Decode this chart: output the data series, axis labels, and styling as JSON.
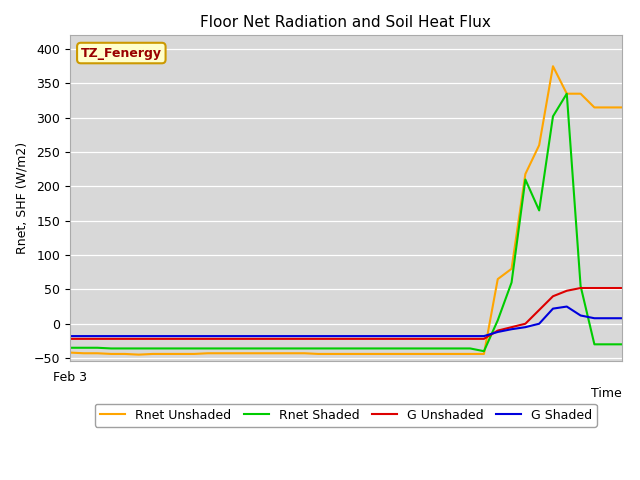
{
  "title": "Floor Net Radiation and Soil Heat Flux",
  "xlabel": "Time",
  "ylabel": "Rnet, SHF (W/m2)",
  "ylim": [
    -55,
    420
  ],
  "yticks": [
    -50,
    0,
    50,
    100,
    150,
    200,
    250,
    300,
    350,
    400
  ],
  "xstart_label": "Feb 3",
  "annotation_text": "TZ_Fenergy",
  "annotation_color": "#990000",
  "annotation_bg": "#ffffcc",
  "annotation_border": "#cc9900",
  "fig_bg": "#ffffff",
  "plot_bg": "#d8d8d8",
  "grid_color": "#ffffff",
  "colors": {
    "rnet_unshaded": "#ffa500",
    "rnet_shaded": "#00cc00",
    "g_unshaded": "#dd0000",
    "g_shaded": "#0000dd"
  },
  "x": [
    0,
    1,
    2,
    3,
    4,
    5,
    6,
    7,
    8,
    9,
    10,
    11,
    12,
    13,
    14,
    15,
    16,
    17,
    18,
    19,
    20,
    21,
    22,
    23,
    24,
    25,
    26,
    27,
    28,
    29,
    30,
    31,
    32,
    33,
    34,
    35,
    36,
    37,
    38,
    39,
    40
  ],
  "rnet_unshaded": [
    -42,
    -43,
    -43,
    -44,
    -44,
    -45,
    -44,
    -44,
    -44,
    -44,
    -43,
    -43,
    -43,
    -43,
    -43,
    -43,
    -43,
    -43,
    -44,
    -44,
    -44,
    -44,
    -44,
    -44,
    -44,
    -44,
    -44,
    -44,
    -44,
    -44,
    -44,
    65,
    80,
    218,
    260,
    375,
    335,
    335,
    315,
    315,
    315
  ],
  "rnet_shaded": [
    -35,
    -35,
    -35,
    -36,
    -36,
    -36,
    -36,
    -36,
    -36,
    -36,
    -36,
    -36,
    -36,
    -36,
    -36,
    -36,
    -36,
    -36,
    -36,
    -36,
    -36,
    -36,
    -36,
    -36,
    -36,
    -36,
    -36,
    -36,
    -36,
    -36,
    -40,
    5,
    60,
    210,
    165,
    302,
    335,
    55,
    -30,
    -30,
    -30
  ],
  "g_unshaded": [
    -22,
    -22,
    -22,
    -22,
    -22,
    -22,
    -22,
    -22,
    -22,
    -22,
    -22,
    -22,
    -22,
    -22,
    -22,
    -22,
    -22,
    -22,
    -22,
    -22,
    -22,
    -22,
    -22,
    -22,
    -22,
    -22,
    -22,
    -22,
    -22,
    -22,
    -22,
    -10,
    -5,
    0,
    20,
    40,
    48,
    52,
    52,
    52,
    52
  ],
  "g_shaded": [
    -18,
    -18,
    -18,
    -18,
    -18,
    -18,
    -18,
    -18,
    -18,
    -18,
    -18,
    -18,
    -18,
    -18,
    -18,
    -18,
    -18,
    -18,
    -18,
    -18,
    -18,
    -18,
    -18,
    -18,
    -18,
    -18,
    -18,
    -18,
    -18,
    -18,
    -18,
    -12,
    -8,
    -5,
    0,
    22,
    25,
    12,
    8,
    8,
    8
  ],
  "legend_labels": [
    "Rnet Unshaded",
    "Rnet Shaded",
    "G Unshaded",
    "G Shaded"
  ]
}
